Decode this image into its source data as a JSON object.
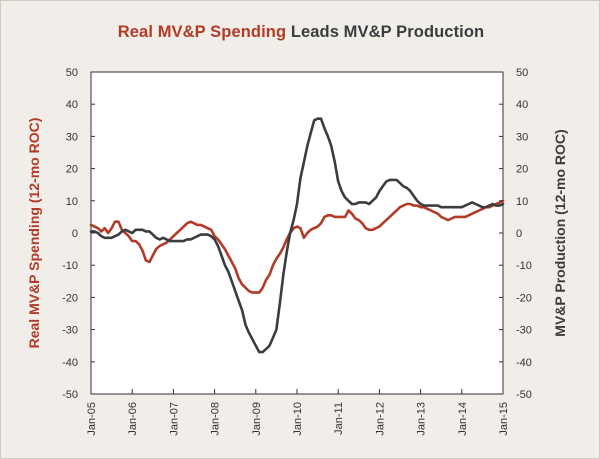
{
  "chart_data": {
    "type": "line",
    "title_parts": [
      "Real MV&P Spending",
      "Leads MV&P Production"
    ],
    "ylabel_left": "Real MV&P Spending (12-mo ROC)",
    "ylabel_right": "MV&P Production (12-mo ROC)",
    "ylim": [
      -50,
      50
    ],
    "y_ticks": [
      "50",
      "40",
      "30",
      "20",
      "10",
      "0",
      "-10",
      "-20",
      "-30",
      "-40",
      "-50"
    ],
    "x_start": "2005-01",
    "x_end": "2015-01",
    "x_ticks": [
      "Jan-05",
      "Jan-06",
      "Jan-07",
      "Jan-08",
      "Jan-09",
      "Jan-10",
      "Jan-11",
      "Jan-12",
      "Jan-13",
      "Jan-14",
      "Jan-15"
    ],
    "grid": false,
    "colors": {
      "spending": "#b33a26",
      "production": "#3a3d40"
    },
    "series": [
      {
        "name": "Real MV&P Spending",
        "axis": "left",
        "points": [
          [
            "2005-01",
            2.5
          ],
          [
            "2005-02",
            2
          ],
          [
            "2005-03",
            1.5
          ],
          [
            "2005-04",
            0.5
          ],
          [
            "2005-05",
            1.5
          ],
          [
            "2005-06",
            0
          ],
          [
            "2005-07",
            1.5
          ],
          [
            "2005-08",
            3.5
          ],
          [
            "2005-09",
            3.5
          ],
          [
            "2005-10",
            1
          ],
          [
            "2005-11",
            0
          ],
          [
            "2005-12",
            -1
          ],
          [
            "2006-01",
            -2.5
          ],
          [
            "2006-02",
            -2.5
          ],
          [
            "2006-03",
            -3.5
          ],
          [
            "2006-04",
            -5.5
          ],
          [
            "2006-05",
            -8.5
          ],
          [
            "2006-06",
            -9
          ],
          [
            "2006-07",
            -7
          ],
          [
            "2006-08",
            -5
          ],
          [
            "2006-09",
            -4
          ],
          [
            "2006-10",
            -3.5
          ],
          [
            "2006-11",
            -3
          ],
          [
            "2006-12",
            -2
          ],
          [
            "2007-01",
            -1
          ],
          [
            "2007-02",
            0
          ],
          [
            "2007-03",
            1
          ],
          [
            "2007-04",
            2
          ],
          [
            "2007-05",
            3
          ],
          [
            "2007-06",
            3.5
          ],
          [
            "2007-07",
            3
          ],
          [
            "2007-08",
            2.5
          ],
          [
            "2007-09",
            2.5
          ],
          [
            "2007-10",
            2
          ],
          [
            "2007-11",
            1.5
          ],
          [
            "2007-12",
            1
          ],
          [
            "2008-01",
            -1
          ],
          [
            "2008-02",
            -2
          ],
          [
            "2008-03",
            -3.5
          ],
          [
            "2008-04",
            -5
          ],
          [
            "2008-05",
            -7
          ],
          [
            "2008-06",
            -9
          ],
          [
            "2008-07",
            -11
          ],
          [
            "2008-08",
            -14
          ],
          [
            "2008-09",
            -16
          ],
          [
            "2008-10",
            -17
          ],
          [
            "2008-11",
            -18
          ],
          [
            "2008-12",
            -18.5
          ],
          [
            "2009-01",
            -18.5
          ],
          [
            "2009-02",
            -18.5
          ],
          [
            "2009-03",
            -17
          ],
          [
            "2009-04",
            -14.5
          ],
          [
            "2009-05",
            -13
          ],
          [
            "2009-06",
            -10
          ],
          [
            "2009-07",
            -8
          ],
          [
            "2009-08",
            -6.5
          ],
          [
            "2009-09",
            -4.5
          ],
          [
            "2009-10",
            -2
          ],
          [
            "2009-11",
            0
          ],
          [
            "2009-12",
            1.5
          ],
          [
            "2010-01",
            2
          ],
          [
            "2010-02",
            1.5
          ],
          [
            "2010-03",
            -1.5
          ],
          [
            "2010-04",
            0
          ],
          [
            "2010-05",
            1
          ],
          [
            "2010-06",
            1.5
          ],
          [
            "2010-07",
            2
          ],
          [
            "2010-08",
            3
          ],
          [
            "2010-09",
            5
          ],
          [
            "2010-10",
            5.5
          ],
          [
            "2010-11",
            5.5
          ],
          [
            "2010-12",
            5
          ],
          [
            "2011-01",
            5
          ],
          [
            "2011-02",
            5
          ],
          [
            "2011-03",
            5
          ],
          [
            "2011-04",
            7
          ],
          [
            "2011-05",
            6
          ],
          [
            "2011-06",
            4.5
          ],
          [
            "2011-07",
            4
          ],
          [
            "2011-08",
            3
          ],
          [
            "2011-09",
            1.5
          ],
          [
            "2011-10",
            1
          ],
          [
            "2011-11",
            1
          ],
          [
            "2011-12",
            1.5
          ],
          [
            "2012-01",
            2
          ],
          [
            "2012-02",
            3
          ],
          [
            "2012-03",
            4
          ],
          [
            "2012-04",
            5
          ],
          [
            "2012-05",
            6
          ],
          [
            "2012-06",
            7
          ],
          [
            "2012-07",
            8
          ],
          [
            "2012-08",
            8.5
          ],
          [
            "2012-09",
            9
          ],
          [
            "2012-10",
            9
          ],
          [
            "2012-11",
            8.5
          ],
          [
            "2012-12",
            8.5
          ],
          [
            "2013-01",
            8
          ],
          [
            "2013-02",
            8
          ],
          [
            "2013-03",
            7.5
          ],
          [
            "2013-04",
            7
          ],
          [
            "2013-05",
            6.5
          ],
          [
            "2013-06",
            6
          ],
          [
            "2013-07",
            5
          ],
          [
            "2013-08",
            4.5
          ],
          [
            "2013-09",
            4
          ],
          [
            "2013-10",
            4.5
          ],
          [
            "2013-11",
            5
          ],
          [
            "2013-12",
            5
          ],
          [
            "2014-01",
            5
          ],
          [
            "2014-02",
            5
          ],
          [
            "2014-03",
            5.5
          ],
          [
            "2014-04",
            6
          ],
          [
            "2014-05",
            6.5
          ],
          [
            "2014-06",
            7
          ],
          [
            "2014-07",
            7.5
          ],
          [
            "2014-08",
            8
          ],
          [
            "2014-09",
            8
          ],
          [
            "2014-10",
            8.5
          ],
          [
            "2014-11",
            9
          ],
          [
            "2014-12",
            9.5
          ],
          [
            "2015-01",
            10
          ]
        ]
      },
      {
        "name": "MV&P Production",
        "axis": "right",
        "points": [
          [
            "2005-01",
            0.5
          ],
          [
            "2005-02",
            0.5
          ],
          [
            "2005-03",
            0
          ],
          [
            "2005-04",
            -1
          ],
          [
            "2005-05",
            -1.5
          ],
          [
            "2005-06",
            -1.5
          ],
          [
            "2005-07",
            -1.5
          ],
          [
            "2005-08",
            -1
          ],
          [
            "2005-09",
            -0.5
          ],
          [
            "2005-10",
            0.5
          ],
          [
            "2005-11",
            1
          ],
          [
            "2005-12",
            0.5
          ],
          [
            "2006-01",
            0
          ],
          [
            "2006-02",
            1
          ],
          [
            "2006-03",
            1
          ],
          [
            "2006-04",
            1
          ],
          [
            "2006-05",
            0.5
          ],
          [
            "2006-06",
            0.5
          ],
          [
            "2006-07",
            -0.5
          ],
          [
            "2006-08",
            -1.5
          ],
          [
            "2006-09",
            -2
          ],
          [
            "2006-10",
            -1.5
          ],
          [
            "2006-11",
            -2
          ],
          [
            "2006-12",
            -2.5
          ],
          [
            "2007-01",
            -2.5
          ],
          [
            "2007-02",
            -2.5
          ],
          [
            "2007-03",
            -2.5
          ],
          [
            "2007-04",
            -2.5
          ],
          [
            "2007-05",
            -2
          ],
          [
            "2007-06",
            -2
          ],
          [
            "2007-07",
            -1.5
          ],
          [
            "2007-08",
            -1
          ],
          [
            "2007-09",
            -0.5
          ],
          [
            "2007-10",
            -0.5
          ],
          [
            "2007-11",
            -0.5
          ],
          [
            "2007-12",
            -1
          ],
          [
            "2008-01",
            -2
          ],
          [
            "2008-02",
            -4
          ],
          [
            "2008-03",
            -7
          ],
          [
            "2008-04",
            -10
          ],
          [
            "2008-05",
            -12
          ],
          [
            "2008-06",
            -15
          ],
          [
            "2008-07",
            -18
          ],
          [
            "2008-08",
            -21
          ],
          [
            "2008-09",
            -24
          ],
          [
            "2008-10",
            -28.5
          ],
          [
            "2008-11",
            -31
          ],
          [
            "2008-12",
            -33
          ],
          [
            "2009-01",
            -35
          ],
          [
            "2009-02",
            -37
          ],
          [
            "2009-03",
            -37
          ],
          [
            "2009-04",
            -36
          ],
          [
            "2009-05",
            -35
          ],
          [
            "2009-06",
            -32.5
          ],
          [
            "2009-07",
            -30
          ],
          [
            "2009-08",
            -22
          ],
          [
            "2009-09",
            -13
          ],
          [
            "2009-10",
            -6
          ],
          [
            "2009-11",
            0
          ],
          [
            "2009-12",
            4
          ],
          [
            "2010-01",
            9
          ],
          [
            "2010-02",
            17
          ],
          [
            "2010-03",
            22
          ],
          [
            "2010-04",
            27
          ],
          [
            "2010-05",
            31
          ],
          [
            "2010-06",
            35
          ],
          [
            "2010-07",
            35.5
          ],
          [
            "2010-08",
            35.5
          ],
          [
            "2010-09",
            32.5
          ],
          [
            "2010-10",
            30
          ],
          [
            "2010-11",
            27
          ],
          [
            "2010-12",
            22
          ],
          [
            "2011-01",
            16
          ],
          [
            "2011-02",
            13
          ],
          [
            "2011-03",
            11
          ],
          [
            "2011-04",
            10
          ],
          [
            "2011-05",
            9
          ],
          [
            "2011-06",
            9
          ],
          [
            "2011-07",
            9.5
          ],
          [
            "2011-08",
            9.5
          ],
          [
            "2011-09",
            9.5
          ],
          [
            "2011-10",
            9
          ],
          [
            "2011-11",
            10
          ],
          [
            "2011-12",
            11
          ],
          [
            "2012-01",
            13
          ],
          [
            "2012-02",
            14.5
          ],
          [
            "2012-03",
            16
          ],
          [
            "2012-04",
            16.5
          ],
          [
            "2012-05",
            16.5
          ],
          [
            "2012-06",
            16.5
          ],
          [
            "2012-07",
            15.5
          ],
          [
            "2012-08",
            14.5
          ],
          [
            "2012-09",
            14
          ],
          [
            "2012-10",
            13
          ],
          [
            "2012-11",
            11.5
          ],
          [
            "2012-12",
            10
          ],
          [
            "2013-01",
            9
          ],
          [
            "2013-02",
            8.5
          ],
          [
            "2013-03",
            8.5
          ],
          [
            "2013-04",
            8.5
          ],
          [
            "2013-05",
            8.5
          ],
          [
            "2013-06",
            8.5
          ],
          [
            "2013-07",
            8
          ],
          [
            "2013-08",
            8
          ],
          [
            "2013-09",
            8
          ],
          [
            "2013-10",
            8
          ],
          [
            "2013-11",
            8
          ],
          [
            "2013-12",
            8
          ],
          [
            "2014-01",
            8
          ],
          [
            "2014-02",
            8.5
          ],
          [
            "2014-03",
            9
          ],
          [
            "2014-04",
            9.5
          ],
          [
            "2014-05",
            9
          ],
          [
            "2014-06",
            8.5
          ],
          [
            "2014-07",
            8
          ],
          [
            "2014-08",
            8
          ],
          [
            "2014-09",
            8.5
          ],
          [
            "2014-10",
            9
          ],
          [
            "2014-11",
            8.5
          ],
          [
            "2014-12",
            8.5
          ],
          [
            "2015-01",
            9
          ]
        ]
      }
    ]
  }
}
